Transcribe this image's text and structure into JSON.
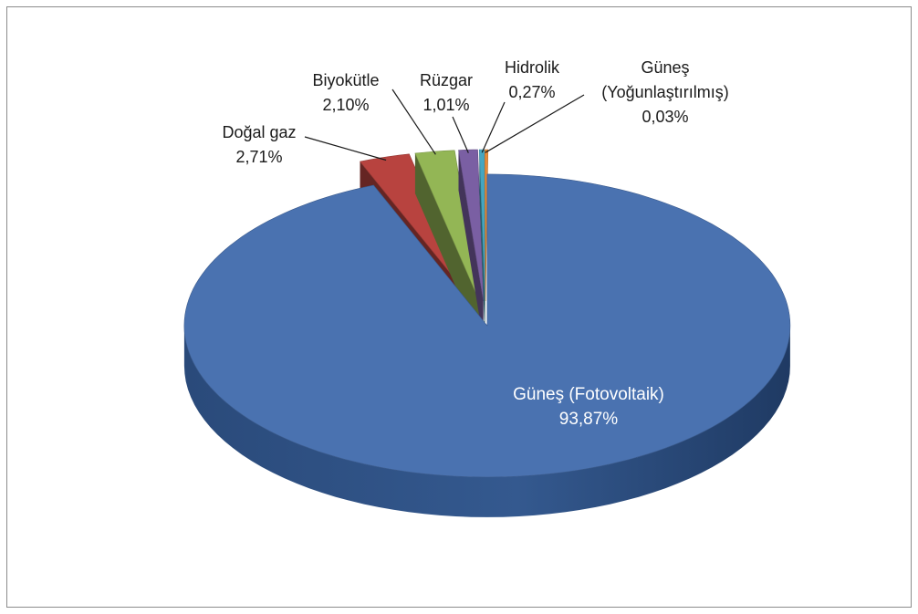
{
  "chart_data": {
    "type": "pie",
    "title": "",
    "slices": [
      {
        "name": "Güneş (Fotovoltaik)",
        "value": 93.87,
        "label_value": "93,87%",
        "color": "#4a72b0"
      },
      {
        "name": "Doğal gaz",
        "value": 2.71,
        "label_value": "2,71%",
        "color": "#b8433f"
      },
      {
        "name": "Biyokütle",
        "value": 2.1,
        "label_value": "2,10%",
        "color": "#93b655"
      },
      {
        "name": "Rüzgar",
        "value": 1.01,
        "label_value": "1,01%",
        "color": "#7a5fa3"
      },
      {
        "name": "Hidrolik",
        "value": 0.27,
        "label_value": "0,27%",
        "color": "#44a6c1"
      },
      {
        "name": "Güneş (Yoğunlaştırılmış)",
        "value": 0.03,
        "label_value": "0,03%",
        "color": "#e58a38"
      }
    ],
    "label_lines": {
      "gunes_yogun_1": "Güneş",
      "gunes_yogun_2": "(Yoğunlaştırılmış)"
    },
    "legend": "none",
    "style": "3d-exploded"
  }
}
